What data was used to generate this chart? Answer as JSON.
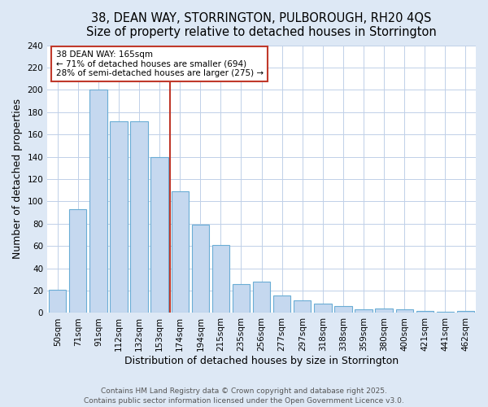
{
  "title_line1": "38, DEAN WAY, STORRINGTON, PULBOROUGH, RH20 4QS",
  "title_line2": "Size of property relative to detached houses in Storrington",
  "xlabel": "Distribution of detached houses by size in Storrington",
  "ylabel": "Number of detached properties",
  "categories": [
    "50sqm",
    "71sqm",
    "91sqm",
    "112sqm",
    "132sqm",
    "153sqm",
    "174sqm",
    "194sqm",
    "215sqm",
    "235sqm",
    "256sqm",
    "277sqm",
    "297sqm",
    "318sqm",
    "338sqm",
    "359sqm",
    "380sqm",
    "400sqm",
    "421sqm",
    "441sqm",
    "462sqm"
  ],
  "values": [
    21,
    93,
    200,
    172,
    172,
    140,
    109,
    79,
    61,
    26,
    28,
    16,
    11,
    8,
    6,
    3,
    4,
    3,
    2,
    1,
    2
  ],
  "bar_color": "#c5d8ef",
  "bar_edge_color": "#6aadd5",
  "figure_background_color": "#dde8f5",
  "plot_background_color": "#ffffff",
  "vline_x_index": 5.5,
  "vline_color": "#c0392b",
  "annotation_text_line1": "38 DEAN WAY: 165sqm",
  "annotation_text_line2": "← 71% of detached houses are smaller (694)",
  "annotation_text_line3": "28% of semi-detached houses are larger (275) →",
  "annotation_box_color": "#ffffff",
  "annotation_edge_color": "#c0392b",
  "ylim": [
    0,
    240
  ],
  "yticks": [
    0,
    20,
    40,
    60,
    80,
    100,
    120,
    140,
    160,
    180,
    200,
    220,
    240
  ],
  "footer_line1": "Contains HM Land Registry data © Crown copyright and database right 2025.",
  "footer_line2": "Contains public sector information licensed under the Open Government Licence v3.0.",
  "title_fontsize": 10.5,
  "subtitle_fontsize": 9.5,
  "axis_label_fontsize": 9,
  "tick_fontsize": 7.5,
  "annotation_fontsize": 7.5,
  "footer_fontsize": 6.5,
  "bar_width": 0.85
}
